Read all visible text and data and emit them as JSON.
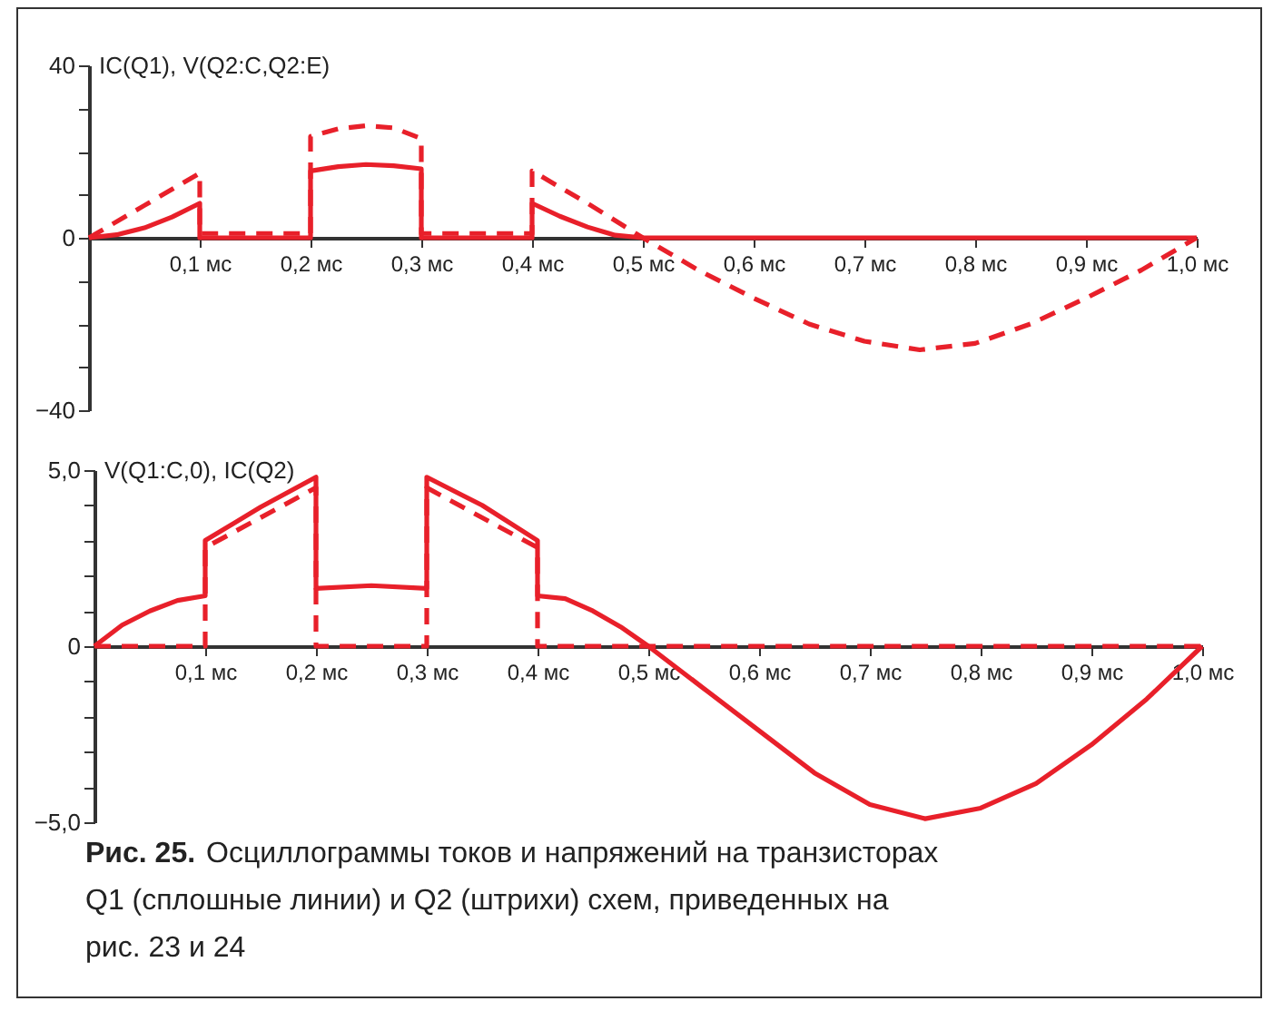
{
  "chart_data": [
    {
      "type": "line",
      "ylabel": "IC(Q1), V(Q2:C,Q2:E)",
      "xlim": [
        0,
        1.0
      ],
      "ylim": [
        -40,
        40
      ],
      "grid": false,
      "legend": false,
      "xticks": [
        {
          "value": 0.1,
          "label": "0,1 мс"
        },
        {
          "value": 0.2,
          "label": "0,2 мс"
        },
        {
          "value": 0.3,
          "label": "0,3 мс"
        },
        {
          "value": 0.4,
          "label": "0,4 мс"
        },
        {
          "value": 0.5,
          "label": "0,5 мс"
        },
        {
          "value": 0.6,
          "label": "0,6 мс"
        },
        {
          "value": 0.7,
          "label": "0,7 мс"
        },
        {
          "value": 0.8,
          "label": "0,8 мс"
        },
        {
          "value": 0.9,
          "label": "0,9 мс"
        },
        {
          "value": 1.0,
          "label": "1,0 мс"
        }
      ],
      "yticks": [
        {
          "value": -40,
          "label": "−40"
        },
        {
          "value": -30,
          "label": null
        },
        {
          "value": -20,
          "label": null
        },
        {
          "value": -10,
          "label": null
        },
        {
          "value": 0,
          "label": "0"
        },
        {
          "value": 10,
          "label": null
        },
        {
          "value": 20,
          "label": null
        },
        {
          "value": 30,
          "label": null
        },
        {
          "value": 40,
          "label": "40"
        }
      ],
      "series": [
        {
          "color": "#e8202a",
          "line_style": "solid",
          "x": [
            0,
            0.025,
            0.05,
            0.075,
            0.1,
            0.1,
            0.2,
            0.2,
            0.225,
            0.25,
            0.275,
            0.3,
            0.3,
            0.4,
            0.4,
            0.425,
            0.45,
            0.475,
            0.5,
            1.0
          ],
          "values": [
            0,
            0.7,
            2.3,
            4.8,
            8,
            0,
            0,
            15.5,
            16.5,
            17,
            16.7,
            16,
            0,
            0,
            8,
            5,
            2.5,
            0.6,
            0,
            0
          ]
        },
        {
          "color": "#e8202a",
          "line_style": "dashed",
          "x": [
            0,
            0.05,
            0.1,
            0.1,
            0.2,
            0.2,
            0.225,
            0.25,
            0.275,
            0.3,
            0.3,
            0.4,
            0.4,
            0.45,
            0.5,
            0.55,
            0.6,
            0.65,
            0.7,
            0.75,
            0.8,
            0.85,
            0.9,
            0.95,
            1.0
          ],
          "values": [
            0,
            7.5,
            15,
            1,
            1,
            23.5,
            25.3,
            26,
            25.5,
            23,
            1,
            1,
            15.5,
            8,
            0,
            -7.5,
            -14,
            -20,
            -24,
            -26,
            -24.5,
            -20,
            -14,
            -7.5,
            0
          ]
        }
      ]
    },
    {
      "type": "line",
      "ylabel": "V(Q1:C,0), IC(Q2)",
      "xlim": [
        0,
        1.0
      ],
      "ylim": [
        -5,
        5
      ],
      "grid": false,
      "legend": false,
      "xticks": [
        {
          "value": 0.1,
          "label": "0,1 мс"
        },
        {
          "value": 0.2,
          "label": "0,2 мс"
        },
        {
          "value": 0.3,
          "label": "0,3 мс"
        },
        {
          "value": 0.4,
          "label": "0,4 мс"
        },
        {
          "value": 0.5,
          "label": "0,5 мс"
        },
        {
          "value": 0.6,
          "label": "0,6 мс"
        },
        {
          "value": 0.7,
          "label": "0,7 мс"
        },
        {
          "value": 0.8,
          "label": "0,8 мс"
        },
        {
          "value": 0.9,
          "label": "0,9 мс"
        },
        {
          "value": 1.0,
          "label": "1,0 мс"
        }
      ],
      "yticks": [
        {
          "value": -5,
          "label": "−5,0"
        },
        {
          "value": -4,
          "label": null
        },
        {
          "value": -3,
          "label": null
        },
        {
          "value": -2,
          "label": null
        },
        {
          "value": -1,
          "label": null
        },
        {
          "value": 0,
          "label": "0"
        },
        {
          "value": 1,
          "label": null
        },
        {
          "value": 2,
          "label": null
        },
        {
          "value": 3,
          "label": null
        },
        {
          "value": 4,
          "label": null
        },
        {
          "value": 5,
          "label": "5,0"
        }
      ],
      "series": [
        {
          "color": "#e8202a",
          "line_style": "solid",
          "x": [
            0,
            0.025,
            0.05,
            0.075,
            0.1,
            0.1,
            0.15,
            0.2,
            0.2,
            0.25,
            0.3,
            0.3,
            0.35,
            0.4,
            0.4,
            0.425,
            0.45,
            0.475,
            0.5,
            0.55,
            0.6,
            0.65,
            0.7,
            0.75,
            0.8,
            0.85,
            0.9,
            0.95,
            1.0
          ],
          "values": [
            0,
            0.6,
            1.0,
            1.3,
            1.43,
            3.0,
            3.95,
            4.8,
            1.64,
            1.72,
            1.64,
            4.8,
            4.0,
            3.0,
            1.43,
            1.35,
            1.0,
            0.55,
            0,
            -1.2,
            -2.4,
            -3.6,
            -4.5,
            -4.9,
            -4.6,
            -3.9,
            -2.8,
            -1.5,
            0
          ]
        },
        {
          "color": "#e8202a",
          "line_style": "dashed",
          "x": [
            0,
            0.1,
            0.1,
            0.2,
            0.2,
            0.3,
            0.3,
            0.4,
            0.4,
            1.0
          ],
          "values": [
            0,
            0,
            2.8,
            4.5,
            0,
            0,
            4.5,
            2.8,
            0,
            0
          ]
        }
      ],
      "annotations": [
        "Рис. 25.",
        "Осциллограммы токов и напряжений на транзисторах Q1 (сплошные линии) и Q2 (штрихи) схем, приведенных на рис. 23 и 24"
      ]
    }
  ]
}
